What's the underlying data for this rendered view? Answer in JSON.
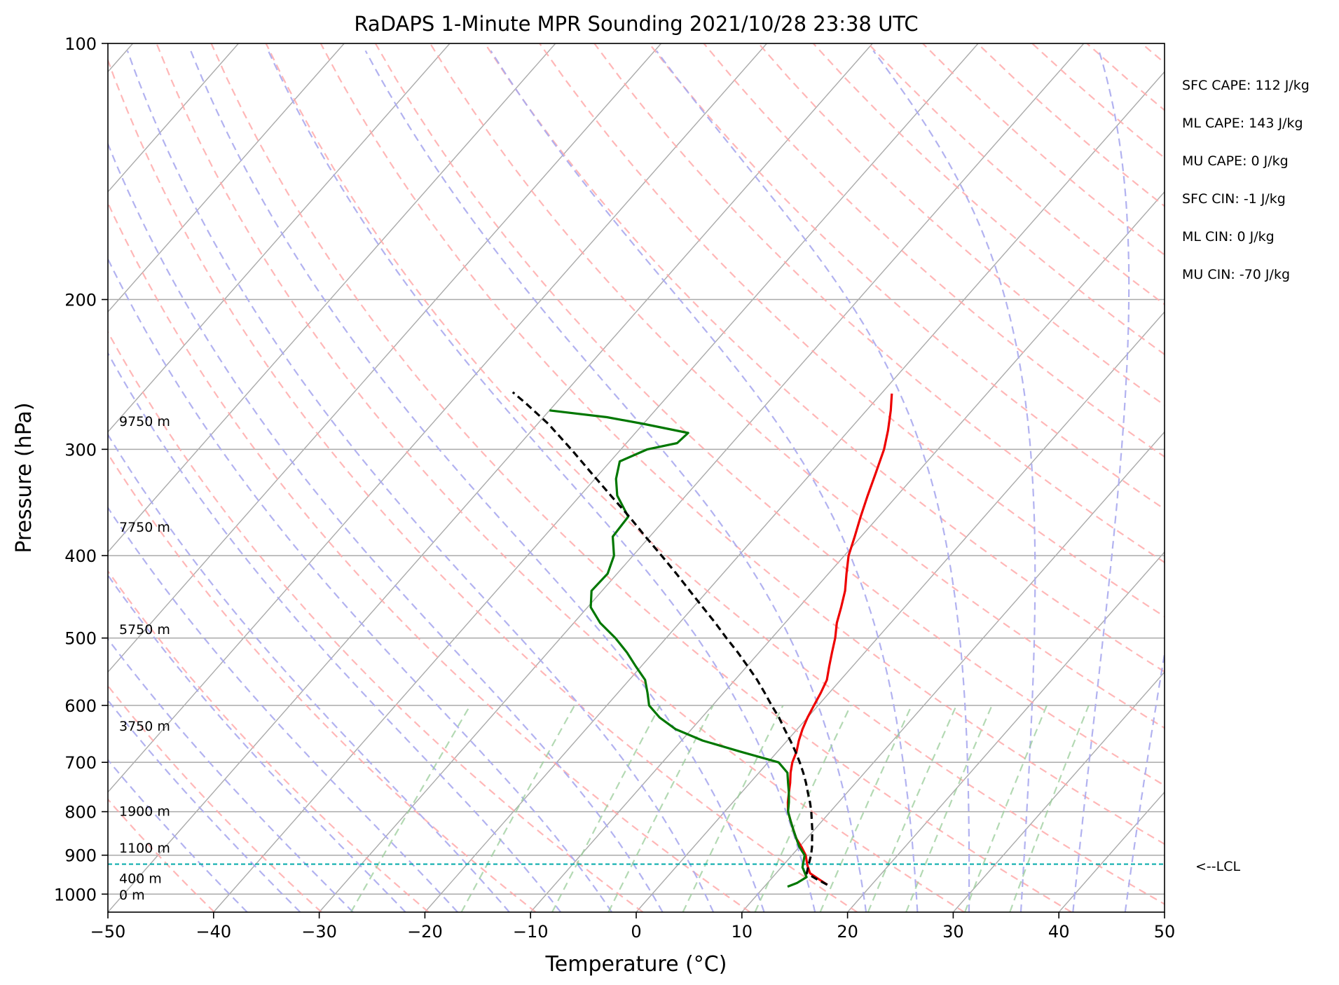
{
  "chart_data": {
    "type": "line",
    "title": "RaDAPS 1-Minute MPR Sounding 2021/10/28 23:38 UTC",
    "xlabel": "Temperature (°C)",
    "ylabel": "Pressure (hPa)",
    "xlim": [
      -50,
      50
    ],
    "ylim": [
      1050,
      100
    ],
    "y_scale": "log",
    "x_ticks": [
      -50,
      -40,
      -30,
      -20,
      -10,
      0,
      10,
      20,
      30,
      40,
      50
    ],
    "x_tick_labels": [
      "−50",
      "−40",
      "−30",
      "−20",
      "−10",
      "0",
      "10",
      "20",
      "30",
      "40",
      "50"
    ],
    "y_ticks": [
      100,
      200,
      300,
      400,
      500,
      600,
      700,
      800,
      900,
      1000
    ],
    "y_tick_labels": [
      "100",
      "200",
      "300",
      "400",
      "500",
      "600",
      "700",
      "800",
      "900",
      "1000"
    ],
    "grid": true,
    "skew": true,
    "series": [
      {
        "role": "temperature",
        "color": "#ee0000",
        "points": [
          [
            15.8,
            975
          ],
          [
            14.5,
            960
          ],
          [
            13.2,
            945
          ],
          [
            12.3,
            925
          ],
          [
            11.3,
            900
          ],
          [
            10.2,
            880
          ],
          [
            9.0,
            860
          ],
          [
            8.0,
            840
          ],
          [
            7.0,
            820
          ],
          [
            6.0,
            800
          ],
          [
            5.2,
            780
          ],
          [
            4.5,
            760
          ],
          [
            3.8,
            740
          ],
          [
            3.0,
            720
          ],
          [
            2.3,
            700
          ],
          [
            1.8,
            680
          ],
          [
            1.1,
            660
          ],
          [
            0.5,
            640
          ],
          [
            0.0,
            620
          ],
          [
            -0.4,
            600
          ],
          [
            -0.8,
            580
          ],
          [
            -1.3,
            560
          ],
          [
            -2.2,
            540
          ],
          [
            -3.1,
            520
          ],
          [
            -4.0,
            500
          ],
          [
            -5.1,
            480
          ],
          [
            -6.0,
            460
          ],
          [
            -7.0,
            440
          ],
          [
            -8.3,
            420
          ],
          [
            -9.6,
            400
          ],
          [
            -10.6,
            380
          ],
          [
            -11.7,
            360
          ],
          [
            -12.8,
            340
          ],
          [
            -13.9,
            320
          ],
          [
            -15.1,
            300
          ],
          [
            -16.3,
            285
          ],
          [
            -17.7,
            270
          ],
          [
            -19.0,
            258
          ]
        ]
      },
      {
        "role": "dewpoint",
        "color": "#007700",
        "points": [
          [
            12.2,
            980
          ],
          [
            12.8,
            970
          ],
          [
            13.2,
            955
          ],
          [
            12.0,
            930
          ],
          [
            11.2,
            900
          ],
          [
            10.0,
            880
          ],
          [
            9.0,
            860
          ],
          [
            8.0,
            840
          ],
          [
            7.0,
            820
          ],
          [
            6.0,
            800
          ],
          [
            5.3,
            780
          ],
          [
            4.5,
            760
          ],
          [
            3.6,
            740
          ],
          [
            2.7,
            720
          ],
          [
            1.0,
            700
          ],
          [
            -3.5,
            680
          ],
          [
            -8.0,
            660
          ],
          [
            -11.5,
            640
          ],
          [
            -14.0,
            620
          ],
          [
            -16.0,
            600
          ],
          [
            -17.2,
            580
          ],
          [
            -18.5,
            560
          ],
          [
            -20.5,
            540
          ],
          [
            -22.5,
            520
          ],
          [
            -24.8,
            500
          ],
          [
            -27.5,
            480
          ],
          [
            -29.7,
            460
          ],
          [
            -31.0,
            440
          ],
          [
            -30.9,
            420
          ],
          [
            -31.8,
            400
          ],
          [
            -33.5,
            380
          ],
          [
            -33.7,
            360
          ],
          [
            -36.5,
            340
          ],
          [
            -38.0,
            325
          ],
          [
            -39.1,
            310
          ],
          [
            -37.5,
            300
          ],
          [
            -35.2,
            295
          ],
          [
            -35.0,
            287
          ],
          [
            -40.0,
            280
          ],
          [
            -44.0,
            275
          ],
          [
            -50.0,
            270
          ]
        ]
      },
      {
        "role": "parcel",
        "color": "#000000",
        "dashed": true,
        "points": [
          [
            15.8,
            975
          ],
          [
            14.3,
            960
          ],
          [
            12.9,
            945
          ],
          [
            12.4,
            925
          ],
          [
            11.8,
            900
          ],
          [
            11.2,
            880
          ],
          [
            10.5,
            860
          ],
          [
            9.8,
            840
          ],
          [
            9.0,
            820
          ],
          [
            8.2,
            800
          ],
          [
            7.3,
            780
          ],
          [
            6.3,
            760
          ],
          [
            5.3,
            740
          ],
          [
            4.2,
            720
          ],
          [
            3.0,
            700
          ],
          [
            1.7,
            680
          ],
          [
            0.3,
            660
          ],
          [
            -1.2,
            640
          ],
          [
            -2.7,
            620
          ],
          [
            -4.4,
            600
          ],
          [
            -6.1,
            580
          ],
          [
            -7.9,
            560
          ],
          [
            -9.9,
            540
          ],
          [
            -12.0,
            520
          ],
          [
            -14.3,
            500
          ],
          [
            -16.6,
            480
          ],
          [
            -19.1,
            460
          ],
          [
            -21.7,
            440
          ],
          [
            -24.4,
            420
          ],
          [
            -27.3,
            400
          ],
          [
            -30.4,
            380
          ],
          [
            -33.6,
            360
          ],
          [
            -37.1,
            340
          ],
          [
            -40.8,
            320
          ],
          [
            -44.7,
            300
          ],
          [
            -49.0,
            280
          ],
          [
            -52.8,
            265
          ],
          [
            -55.0,
            257
          ]
        ]
      }
    ],
    "lcl": {
      "pressure": 922,
      "label": "<--LCL",
      "color": "#00aaaa"
    },
    "height_labels": [
      {
        "pressure": 278,
        "text": "9750 m"
      },
      {
        "pressure": 370,
        "text": "7750 m"
      },
      {
        "pressure": 488,
        "text": "5750 m"
      },
      {
        "pressure": 634,
        "text": "3750 m"
      },
      {
        "pressure": 798,
        "text": "1900 m"
      },
      {
        "pressure": 882,
        "text": "1100 m"
      },
      {
        "pressure": 958,
        "text": "400 m"
      },
      {
        "pressure": 1001,
        "text": "0 m"
      }
    ],
    "stats": [
      "SFC CAPE: 112 J/kg",
      "ML CAPE: 143 J/kg",
      "MU CAPE: 0 J/kg",
      "SFC CIN: -1 J/kg",
      "ML CIN: 0 J/kg",
      "MU CIN: -70 J/kg"
    ],
    "colors": {
      "isotherm": "#aaaaaa",
      "dry_adiabat": "#ffaaaa",
      "moist_adiabat": "#aaaaee",
      "mixing_ratio": "#99cc99"
    }
  }
}
